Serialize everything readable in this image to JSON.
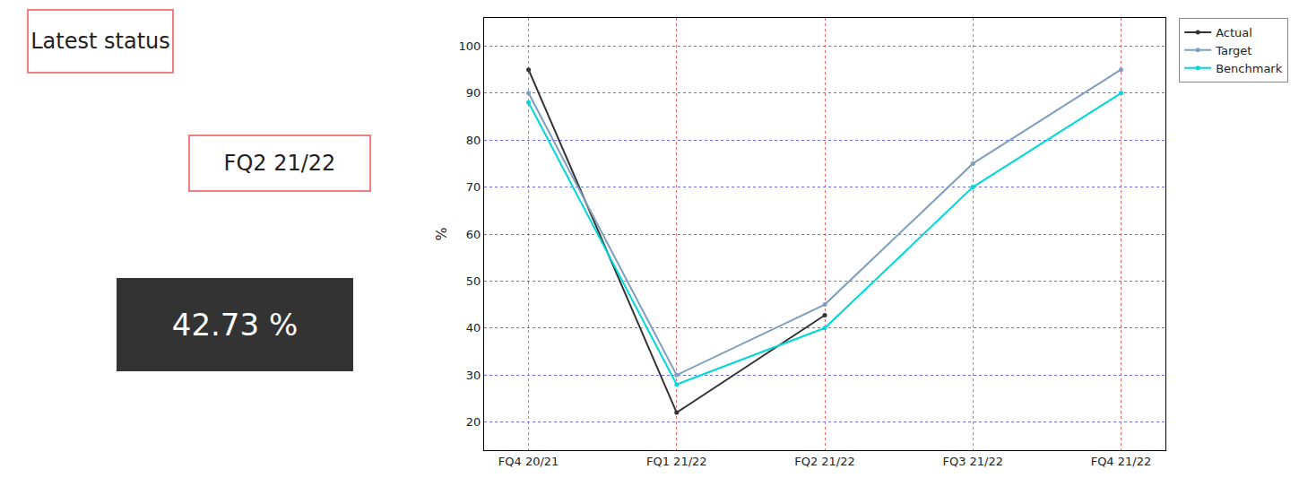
{
  "chart_data": {
    "type": "line",
    "categories": [
      "FQ4 20/21",
      "FQ1 21/22",
      "FQ2 21/22",
      "FQ3 21/22",
      "FQ4 21/22"
    ],
    "series": [
      {
        "name": "Actual",
        "color": "#333333",
        "values": [
          95,
          22,
          42.73,
          null,
          null
        ]
      },
      {
        "name": "Target",
        "color": "#7f9fbf",
        "values": [
          90,
          30,
          45,
          75,
          95
        ]
      },
      {
        "name": "Benchmark",
        "color": "#00d8d8",
        "values": [
          88,
          28,
          40,
          70,
          90
        ]
      }
    ],
    "y_label": "%",
    "ylim": [
      14,
      106
    ],
    "yticks": [
      20,
      30,
      40,
      50,
      60,
      70,
      80,
      90,
      100
    ],
    "grid": true,
    "legend": "right"
  },
  "status_panel": {
    "title": "Latest status",
    "period": "FQ2 21/22",
    "value": "42.73 %"
  }
}
